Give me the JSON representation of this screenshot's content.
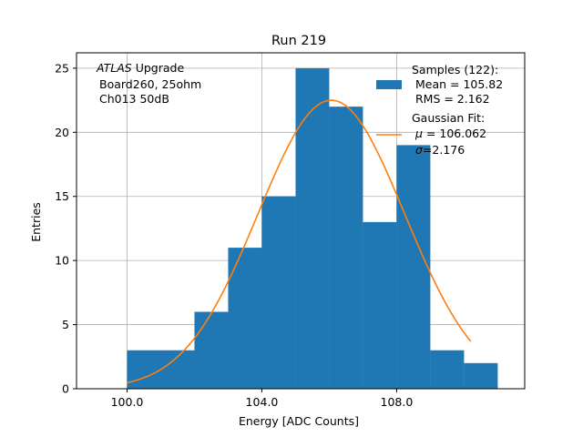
{
  "chart_data": {
    "type": "bar",
    "title": "Run 219",
    "xlabel": "Energy [ADC Counts]",
    "ylabel": "Entries",
    "xlim": [
      98.5,
      111.8
    ],
    "ylim": [
      0,
      26.2
    ],
    "grid": true,
    "x_ticks": [
      100.0,
      104.0,
      108.0
    ],
    "x_tick_labels": [
      "100.0",
      "104.0",
      "108.0"
    ],
    "y_ticks": [
      0,
      5,
      10,
      15,
      20,
      25
    ],
    "y_tick_labels": [
      "0",
      "5",
      "10",
      "15",
      "20",
      "25"
    ],
    "bins": [
      {
        "left": 100.0,
        "right": 101.0,
        "count": 3
      },
      {
        "left": 101.0,
        "right": 102.0,
        "count": 3
      },
      {
        "left": 102.0,
        "right": 103.0,
        "count": 6
      },
      {
        "left": 103.0,
        "right": 104.0,
        "count": 11
      },
      {
        "left": 104.0,
        "right": 105.0,
        "count": 15
      },
      {
        "left": 105.0,
        "right": 106.0,
        "count": 25
      },
      {
        "left": 106.0,
        "right": 107.0,
        "count": 22
      },
      {
        "left": 107.0,
        "right": 108.0,
        "count": 13
      },
      {
        "left": 108.0,
        "right": 109.0,
        "count": 19
      },
      {
        "left": 109.0,
        "right": 110.0,
        "count": 3
      },
      {
        "left": 110.0,
        "right": 111.0,
        "count": 2
      }
    ],
    "fit": {
      "name": "Gaussian Fit",
      "mu": 106.062,
      "sigma": 2.176,
      "amplitude": 22.5,
      "x_range": [
        100.0,
        110.2
      ]
    },
    "annotation": {
      "line1_italic": "ATLAS",
      "line1_rest": " Upgrade",
      "line2": "Board260, 25ohm",
      "line3": "Ch013 50dB"
    },
    "legend": {
      "position": "top-right",
      "hist_line1": "Samples (122):",
      "hist_line2": " Mean = 105.82",
      "hist_line3": " RMS = 2.162",
      "fit_line1": "Gaussian Fit:",
      "fit_mu_symbol": "μ",
      "fit_mu_text": " = 106.062",
      "fit_sigma_symbol": "σ",
      "fit_sigma_text": "=2.176"
    },
    "colors": {
      "bars": "#1f77b4",
      "fit": "#ff7f0e",
      "grid": "#b0b0b0",
      "axes": "#000000"
    }
  }
}
